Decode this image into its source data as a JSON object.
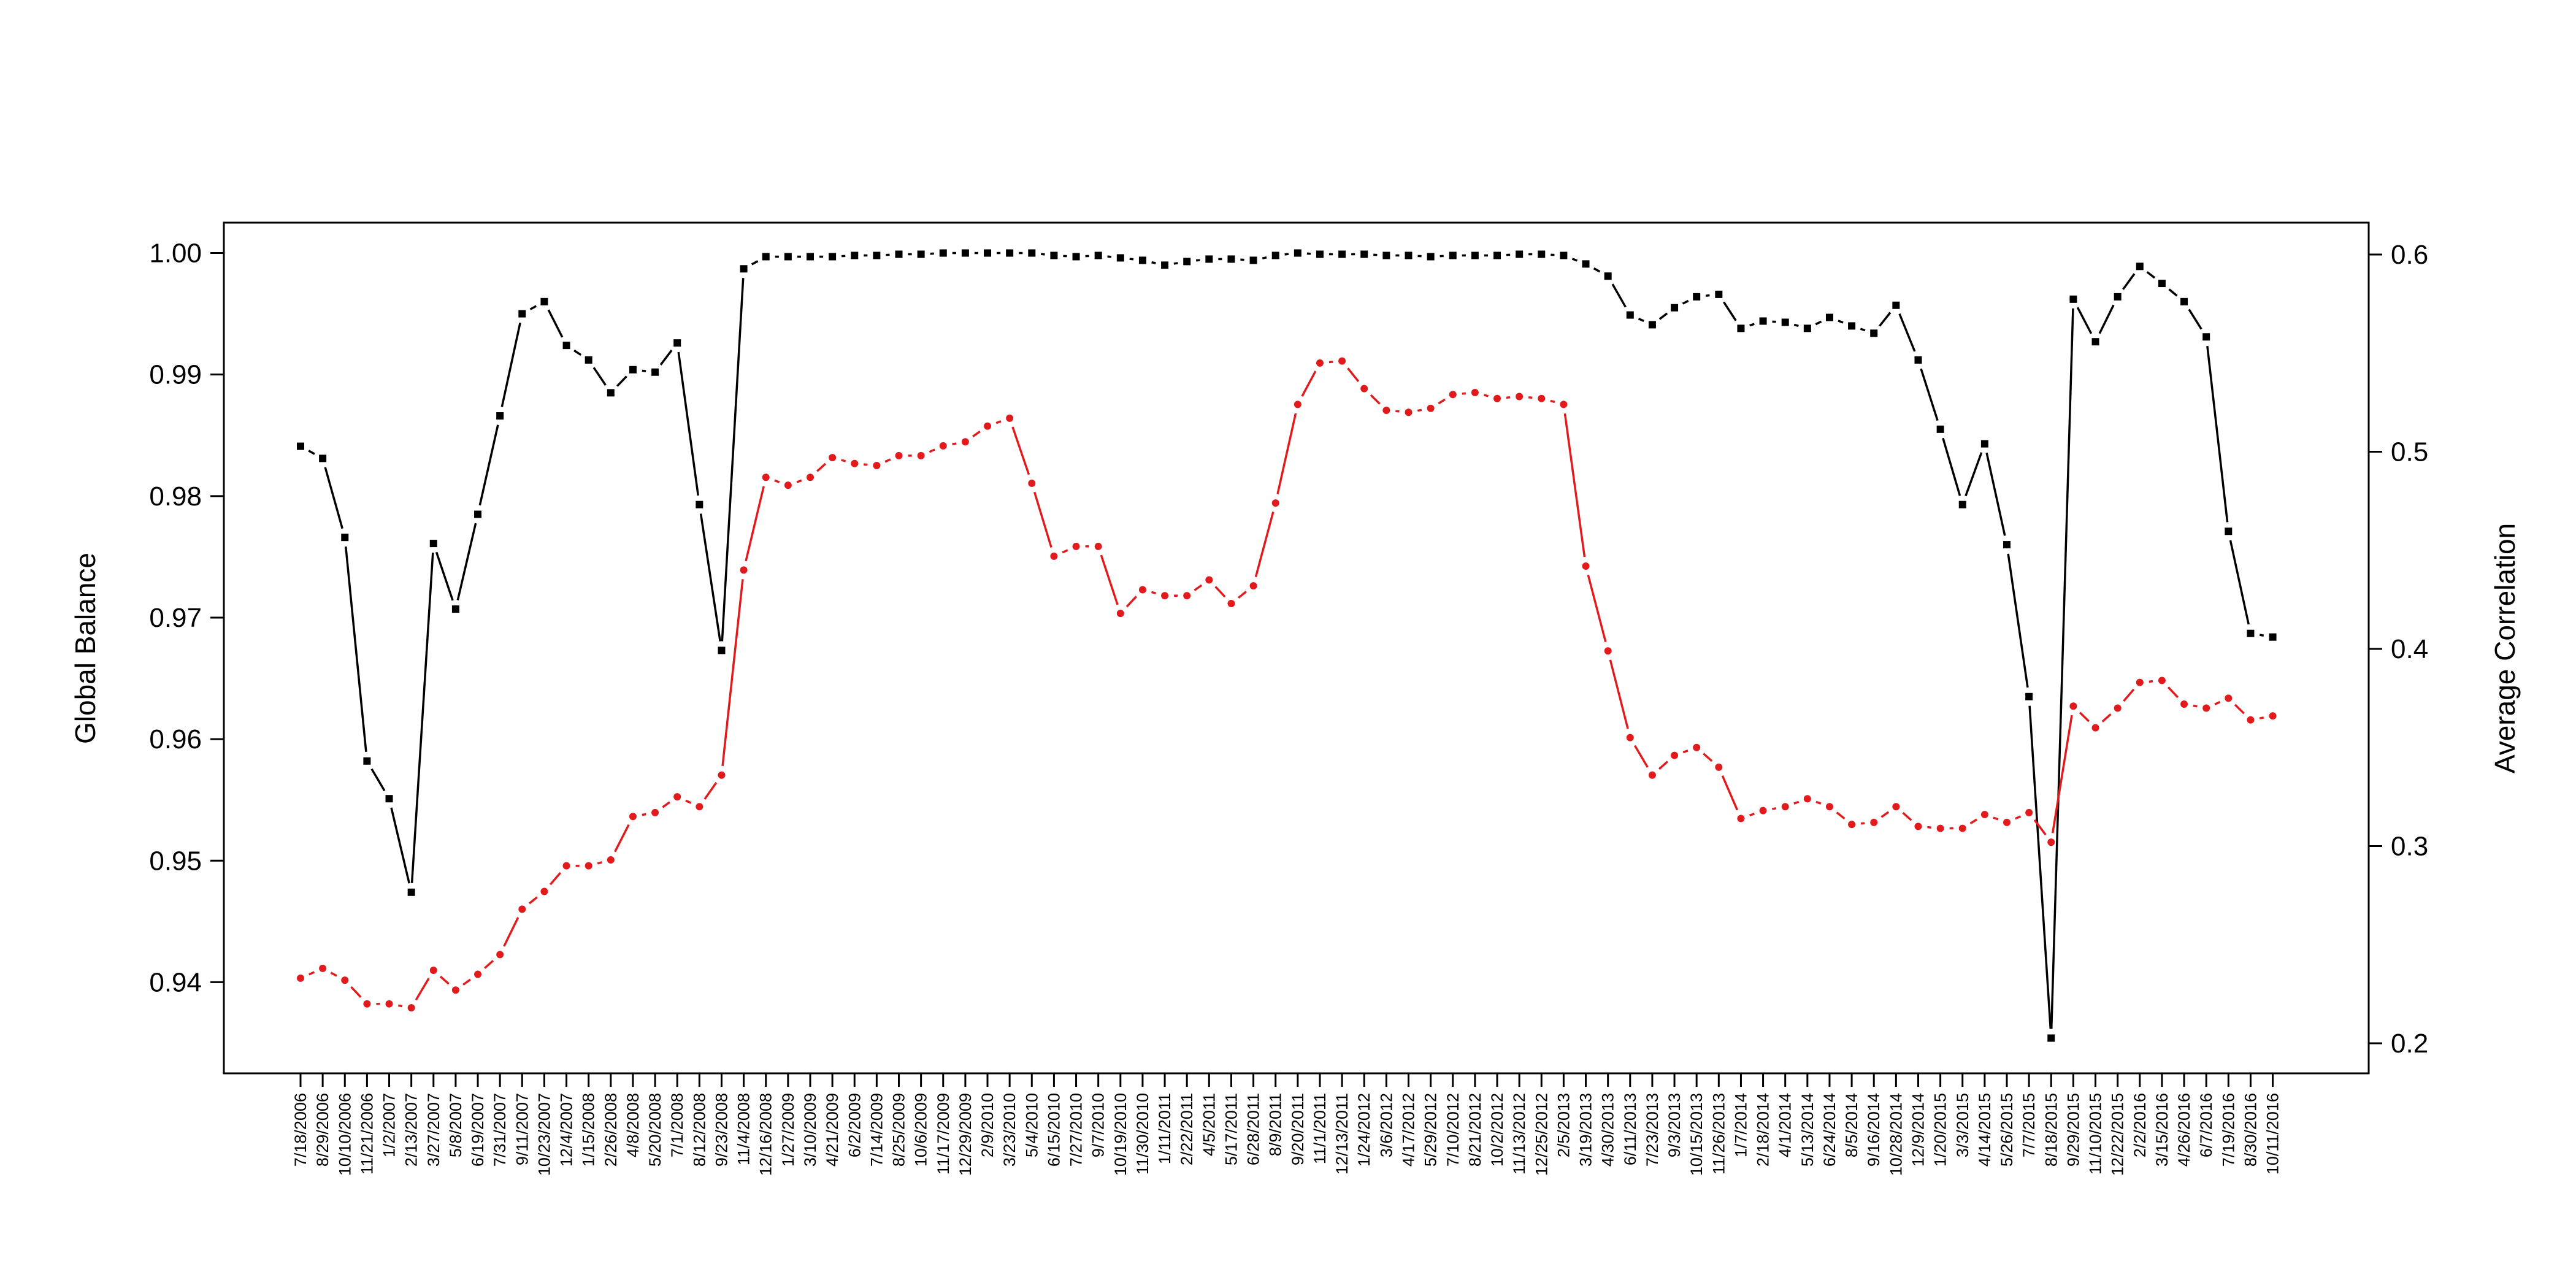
{
  "chart_data": {
    "type": "line",
    "xlabel": "",
    "ylabel_left": "Global Balance",
    "ylabel_right": "Average Correlation",
    "ylim_left": [
      0.9325,
      1.0025
    ],
    "ylim_right": [
      0.2,
      0.6
    ],
    "left_ticks": [
      {
        "value": 0.94,
        "label": "0.94"
      },
      {
        "value": 0.95,
        "label": "0.95"
      },
      {
        "value": 0.96,
        "label": "0.96"
      },
      {
        "value": 0.97,
        "label": "0.97"
      },
      {
        "value": 0.98,
        "label": "0.98"
      },
      {
        "value": 0.99,
        "label": "0.99"
      },
      {
        "value": 1.0,
        "label": "1.00"
      }
    ],
    "right_ticks": [
      {
        "value": 0.2,
        "label": "0.2"
      },
      {
        "value": 0.3,
        "label": "0.3"
      },
      {
        "value": 0.4,
        "label": "0.4"
      },
      {
        "value": 0.5,
        "label": "0.5"
      },
      {
        "value": 0.6,
        "label": "0.6"
      }
    ],
    "categories": [
      "7/18/2006",
      "8/29/2006",
      "10/10/2006",
      "11/21/2006",
      "1/2/2007",
      "2/13/2007",
      "3/27/2007",
      "5/8/2007",
      "6/19/2007",
      "7/31/2007",
      "9/11/2007",
      "10/23/2007",
      "12/4/2007",
      "1/15/2008",
      "2/26/2008",
      "4/8/2008",
      "5/20/2008",
      "7/1/2008",
      "8/12/2008",
      "9/23/2008",
      "11/4/2008",
      "12/16/2008",
      "1/27/2009",
      "3/10/2009",
      "4/21/2009",
      "6/2/2009",
      "7/14/2009",
      "8/25/2009",
      "10/6/2009",
      "11/17/2009",
      "12/29/2009",
      "2/9/2010",
      "3/23/2010",
      "5/4/2010",
      "6/15/2010",
      "7/27/2010",
      "9/7/2010",
      "10/19/2010",
      "11/30/2010",
      "1/11/2011",
      "2/22/2011",
      "4/5/2011",
      "5/17/2011",
      "6/28/2011",
      "8/9/2011",
      "9/20/2011",
      "11/1/2011",
      "12/13/2011",
      "1/24/2012",
      "3/6/2012",
      "4/17/2012",
      "5/29/2012",
      "7/10/2012",
      "8/21/2012",
      "10/2/2012",
      "11/13/2012",
      "12/25/2012",
      "2/5/2013",
      "3/19/2013",
      "4/30/2013",
      "6/11/2013",
      "7/23/2013",
      "9/3/2013",
      "10/15/2013",
      "11/26/2013",
      "1/7/2014",
      "2/18/2014",
      "4/1/2014",
      "5/13/2014",
      "6/24/2014",
      "8/5/2014",
      "9/16/2014",
      "10/28/2014",
      "12/9/2014",
      "1/20/2015",
      "3/3/2015",
      "4/14/2015",
      "5/26/2015",
      "7/7/2015",
      "8/18/2015",
      "9/29/2015",
      "11/10/2015",
      "12/22/2015",
      "2/2/2016",
      "3/15/2016",
      "4/26/2016",
      "6/7/2016",
      "7/19/2016",
      "8/30/2016",
      "10/11/2016"
    ],
    "series": [
      {
        "axis": "left",
        "color": "#000000",
        "values": [
          0.9841,
          0.9831,
          0.9766,
          0.9582,
          0.9551,
          0.9474,
          0.9761,
          0.9707,
          0.9785,
          0.9866,
          0.995,
          0.996,
          0.9924,
          0.9912,
          0.9885,
          0.9904,
          0.9902,
          0.9926,
          0.9793,
          0.9673,
          0.9987,
          0.9997,
          0.9997,
          0.9997,
          0.9997,
          0.9998,
          0.9998,
          0.9999,
          0.9999,
          1.0,
          1.0,
          1.0,
          1.0,
          1.0,
          0.9998,
          0.9997,
          0.9998,
          0.9996,
          0.9994,
          0.999,
          0.9993,
          0.9995,
          0.9995,
          0.9994,
          0.9998,
          1.0,
          0.9999,
          0.9999,
          0.9999,
          0.9998,
          0.9998,
          0.9997,
          0.9998,
          0.9998,
          0.9998,
          0.9999,
          0.9999,
          0.9998,
          0.9991,
          0.9981,
          0.9949,
          0.9941,
          0.9955,
          0.9964,
          0.9966,
          0.9938,
          0.9944,
          0.9943,
          0.9938,
          0.9947,
          0.994,
          0.9934,
          0.9957,
          0.9912,
          0.9855,
          0.9793,
          0.9843,
          0.976,
          0.9635,
          0.9354,
          0.9962,
          0.9927,
          0.9964,
          0.9989,
          0.9975,
          0.996,
          0.9931,
          0.9771,
          0.9687,
          0.9684
        ]
      },
      {
        "axis": "right",
        "color": "#e31a1c",
        "values": [
          0.233,
          0.238,
          0.232,
          0.22,
          0.22,
          0.218,
          0.237,
          0.227,
          0.235,
          0.245,
          0.268,
          0.277,
          0.29,
          0.29,
          0.293,
          0.315,
          0.317,
          0.325,
          0.32,
          0.336,
          0.44,
          0.487,
          0.483,
          0.487,
          0.497,
          0.494,
          0.493,
          0.498,
          0.498,
          0.503,
          0.505,
          0.513,
          0.517,
          0.484,
          0.447,
          0.452,
          0.452,
          0.418,
          0.43,
          0.427,
          0.427,
          0.435,
          0.423,
          0.432,
          0.474,
          0.524,
          0.545,
          0.546,
          0.532,
          0.521,
          0.52,
          0.522,
          0.529,
          0.53,
          0.527,
          0.528,
          0.527,
          0.524,
          0.442,
          0.399,
          0.355,
          0.336,
          0.346,
          0.35,
          0.34,
          0.314,
          0.318,
          0.32,
          0.324,
          0.32,
          0.311,
          0.312,
          0.32,
          0.31,
          0.309,
          0.309,
          0.316,
          0.312,
          0.317,
          0.302,
          0.371,
          0.36,
          0.37,
          0.383,
          0.384,
          0.372,
          0.37,
          0.375,
          0.364,
          0.366
        ]
      }
    ]
  }
}
